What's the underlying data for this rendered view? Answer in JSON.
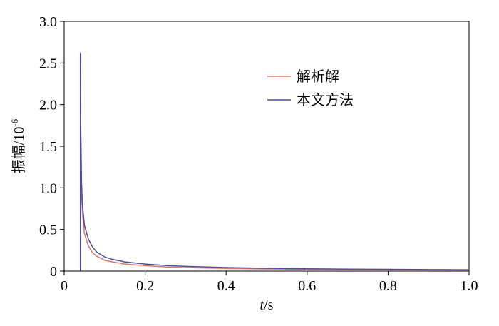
{
  "chart_data": {
    "type": "line",
    "xlabel": {
      "italic": "t",
      "rest": "/s"
    },
    "ylabel": {
      "main": "振幅/10",
      "sup": "-6"
    },
    "xlim": [
      0,
      1.0
    ],
    "ylim": [
      0,
      3.0
    ],
    "xticks": [
      "0",
      "0.2",
      "0.4",
      "0.6",
      "0.8",
      "1.0"
    ],
    "yticks": [
      "0",
      "0.5",
      "1.0",
      "1.5",
      "2.0",
      "2.5",
      "3.0"
    ],
    "grid": false,
    "legend_position": "top-right",
    "series": [
      {
        "name": "解析解",
        "color": "#d9756b",
        "x": [
          0.04,
          0.04,
          0.041,
          0.043,
          0.045,
          0.05,
          0.06,
          0.07,
          0.08,
          0.1,
          0.12,
          0.15,
          0.2,
          0.25,
          0.3,
          0.4,
          0.5,
          0.6,
          0.7,
          0.8,
          0.9,
          1.0
        ],
        "y": [
          0,
          2.6,
          1.6,
          0.95,
          0.7,
          0.45,
          0.3,
          0.22,
          0.18,
          0.13,
          0.11,
          0.085,
          0.065,
          0.05,
          0.042,
          0.032,
          0.026,
          0.021,
          0.018,
          0.016,
          0.014,
          0.012
        ]
      },
      {
        "name": "本文方法",
        "color": "#4f4f9a",
        "x": [
          0.04,
          0.04,
          0.041,
          0.043,
          0.045,
          0.05,
          0.06,
          0.07,
          0.08,
          0.1,
          0.12,
          0.15,
          0.2,
          0.25,
          0.3,
          0.4,
          0.5,
          0.6,
          0.7,
          0.8,
          0.9,
          1.0
        ],
        "y": [
          0,
          2.62,
          1.7,
          1.05,
          0.8,
          0.55,
          0.38,
          0.29,
          0.23,
          0.17,
          0.14,
          0.11,
          0.085,
          0.068,
          0.057,
          0.043,
          0.034,
          0.028,
          0.024,
          0.021,
          0.018,
          0.016
        ]
      }
    ]
  }
}
